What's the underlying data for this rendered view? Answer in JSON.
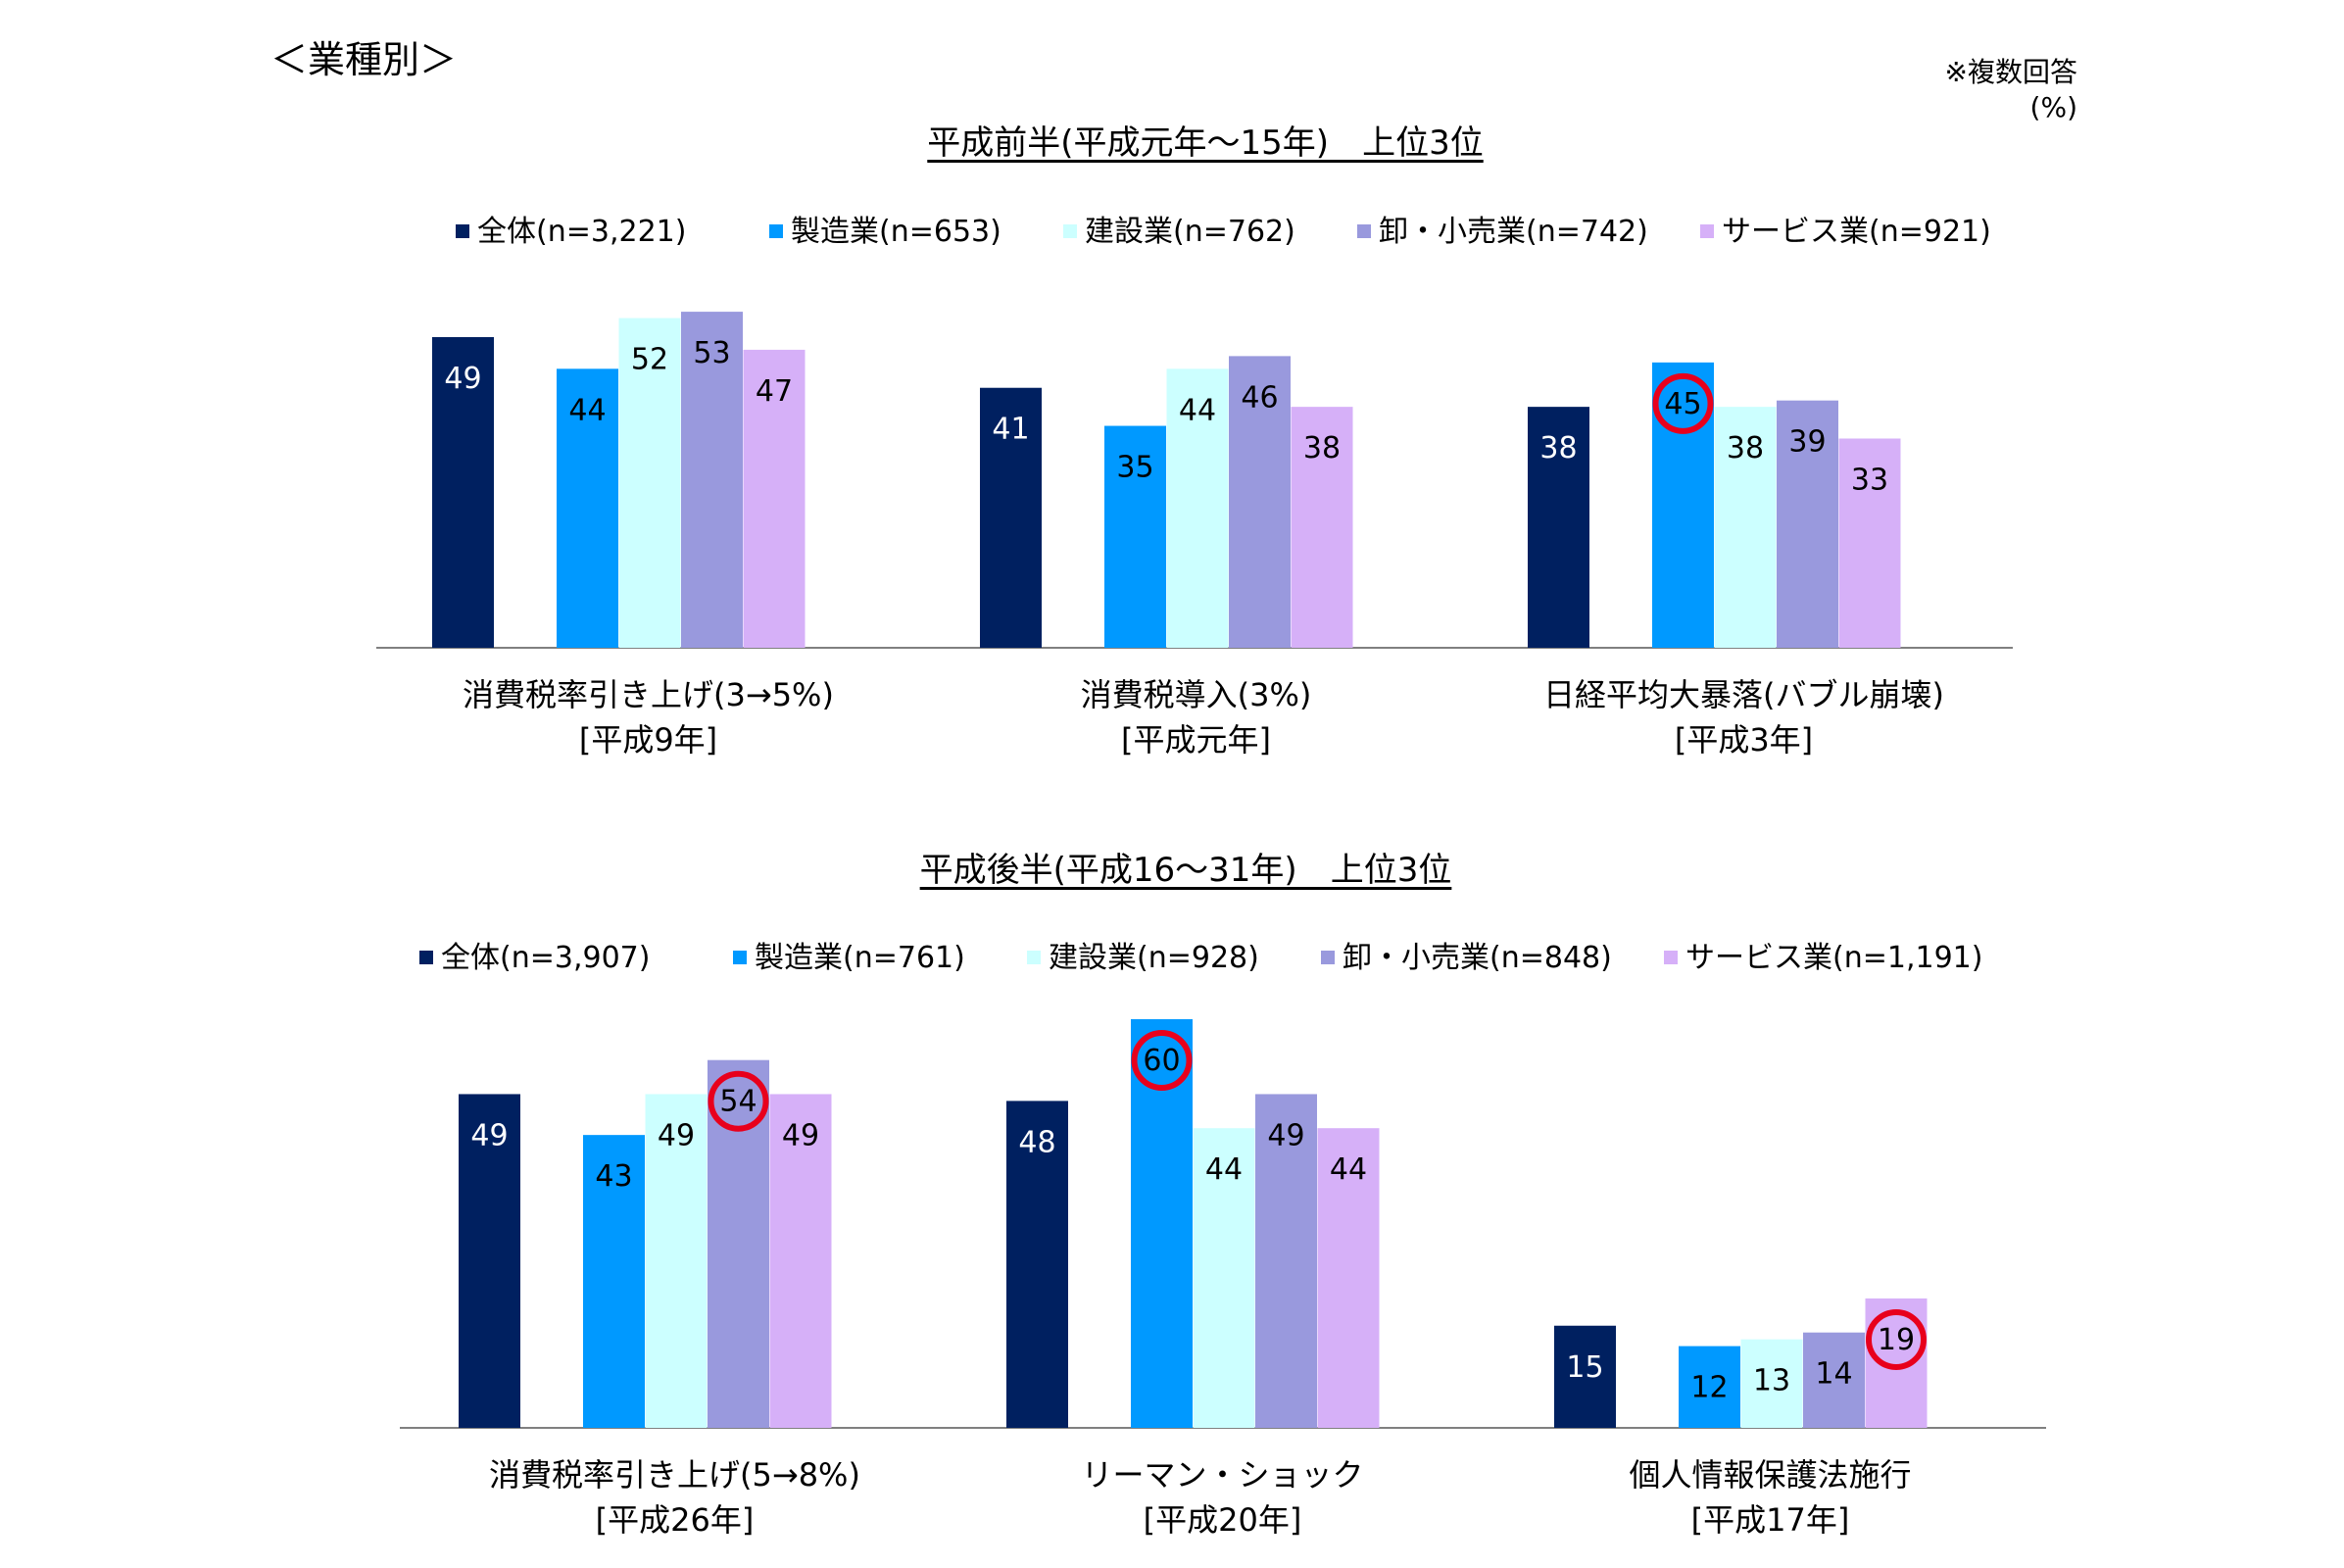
{
  "page_title": "＜業種別＞",
  "note": {
    "line1": "※複数回答",
    "line2": "(%)"
  },
  "colors": {
    "all": "#002060",
    "manufacturing": "#0099FF",
    "construction": "#CCFFFF",
    "wholesale_retail": "#9999DD",
    "services": "#D6B0F8",
    "highlight_circle": "#E8001C",
    "axis": "#808080"
  },
  "chart_data": [
    {
      "type": "bar",
      "title": "平成前半(平成元年～15年)　上位3位",
      "categories": [
        {
          "line1": "消費税率引き上げ(3→5%)",
          "line2": "[平成9年]"
        },
        {
          "line1": "消費税導入(3%)",
          "line2": "[平成元年]"
        },
        {
          "line1": "日経平均大暴落(バブル崩壊)",
          "line2": "[平成3年]"
        }
      ],
      "series": [
        {
          "name": "全体(n=3,221)",
          "color_key": "all",
          "values": [
            49,
            41,
            38
          ]
        },
        {
          "name": "製造業(n=653)",
          "color_key": "manufacturing",
          "values": [
            44,
            35,
            45
          ]
        },
        {
          "name": "建設業(n=762)",
          "color_key": "construction",
          "values": [
            52,
            44,
            38
          ]
        },
        {
          "name": "卸・小売業(n=742)",
          "color_key": "wholesale_retail",
          "values": [
            53,
            46,
            39
          ]
        },
        {
          "name": "サービス業(n=921)",
          "color_key": "services",
          "values": [
            47,
            38,
            33
          ]
        }
      ],
      "highlights": [
        {
          "category": 2,
          "series": 1
        }
      ],
      "ylim": [
        0,
        60
      ],
      "grid": false,
      "legend_position": "top"
    },
    {
      "type": "bar",
      "title": "平成後半(平成16～31年)　上位3位",
      "categories": [
        {
          "line1": "消費税率引き上げ(5→8%)",
          "line2": "[平成26年]"
        },
        {
          "line1": "リーマン・ショック",
          "line2": "[平成20年]"
        },
        {
          "line1": "個人情報保護法施行",
          "line2": "[平成17年]"
        }
      ],
      "series": [
        {
          "name": "全体(n=3,907)",
          "color_key": "all",
          "values": [
            49,
            48,
            15
          ]
        },
        {
          "name": "製造業(n=761)",
          "color_key": "manufacturing",
          "values": [
            43,
            60,
            12
          ]
        },
        {
          "name": "建設業(n=928)",
          "color_key": "construction",
          "values": [
            49,
            44,
            13
          ]
        },
        {
          "name": "卸・小売業(n=848)",
          "color_key": "wholesale_retail",
          "values": [
            54,
            49,
            14
          ]
        },
        {
          "name": "サービス業(n=1,191)",
          "color_key": "services",
          "values": [
            49,
            44,
            19
          ]
        }
      ],
      "highlights": [
        {
          "category": 0,
          "series": 3
        },
        {
          "category": 1,
          "series": 1
        },
        {
          "category": 2,
          "series": 4
        }
      ],
      "ylim": [
        0,
        60
      ],
      "grid": false,
      "legend_position": "top"
    }
  ]
}
